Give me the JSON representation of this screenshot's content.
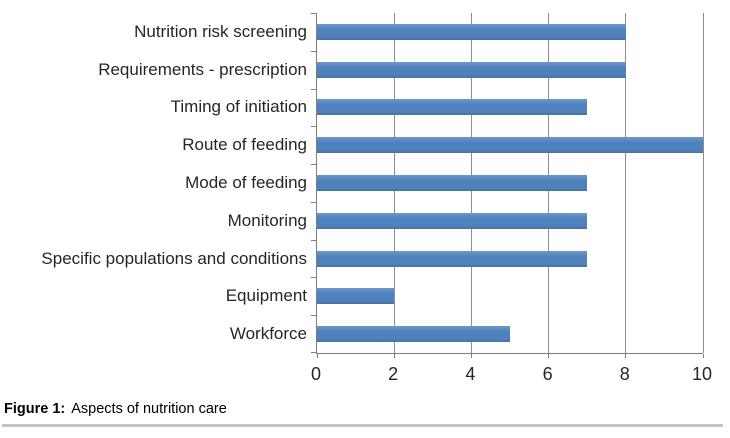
{
  "caption": {
    "label": "Figure 1:",
    "text": "Aspects of nutrition care"
  },
  "chart_data": {
    "type": "bar",
    "orientation": "horizontal",
    "title": "",
    "xlabel": "",
    "ylabel": "",
    "categories": [
      "Nutrition risk screening",
      "Requirements - prescription",
      "Timing of initiation",
      "Route of feeding",
      "Mode of feeding",
      "Monitoring",
      "Specific populations and conditions",
      "Equipment",
      "Workforce"
    ],
    "values": [
      8,
      8,
      7,
      10,
      7,
      7,
      7,
      2,
      5
    ],
    "xlim": [
      0,
      10
    ],
    "xticks": [
      0,
      2,
      4,
      6,
      8,
      10
    ],
    "grid": true,
    "legend": false,
    "bar_color": "#4f81bd",
    "gridline_color": "#8e8e8e",
    "axis_color": "#7f7f7f",
    "text_color": "#262626"
  }
}
